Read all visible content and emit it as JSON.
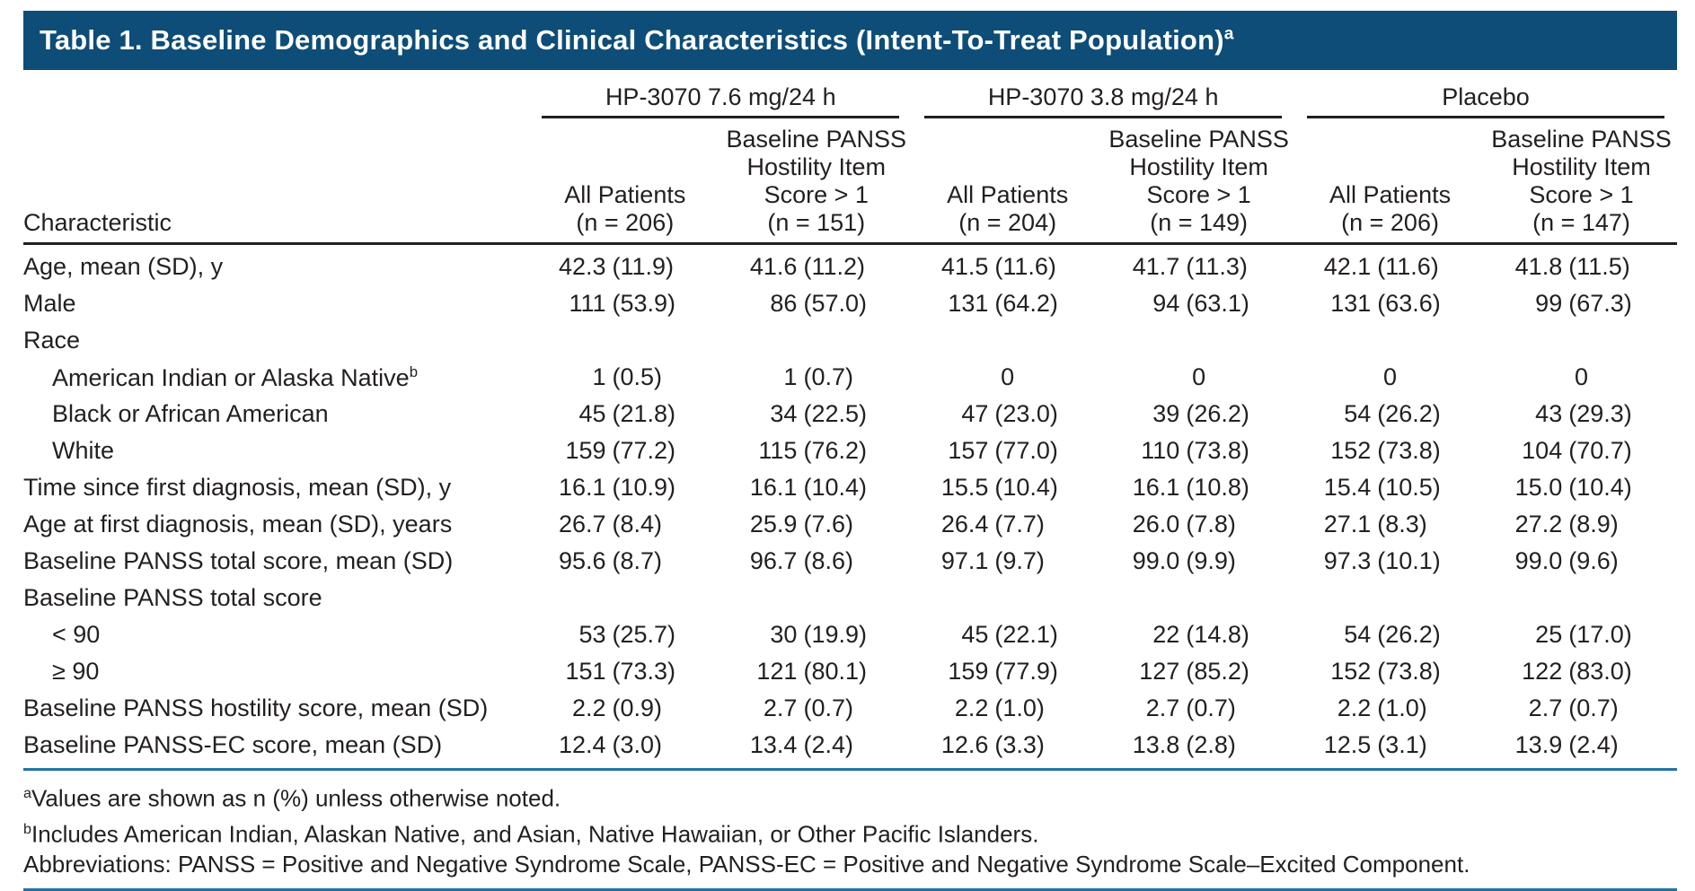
{
  "title": "Table 1. Baseline Demographics and Clinical Characteristics (Intent-To-Treat Population)",
  "title_sup": "a",
  "columns": {
    "characteristic_label": "Characteristic",
    "groups": [
      {
        "label": "HP-3070 7.6 mg/24 h",
        "cols": [
          {
            "lines": [
              "All Patients",
              "(n = 206)"
            ]
          },
          {
            "lines": [
              "Baseline PANSS",
              "Hostility Item",
              "Score > 1",
              "(n = 151)"
            ]
          }
        ]
      },
      {
        "label": "HP-3070 3.8 mg/24 h",
        "cols": [
          {
            "lines": [
              "All Patients",
              "(n = 204)"
            ]
          },
          {
            "lines": [
              "Baseline PANSS",
              "Hostility Item",
              "Score > 1",
              "(n = 149)"
            ]
          }
        ]
      },
      {
        "label": "Placebo",
        "cols": [
          {
            "lines": [
              "All Patients",
              "(n = 206)"
            ]
          },
          {
            "lines": [
              "Baseline PANSS",
              "Hostility Item",
              "Score > 1",
              "(n = 147)"
            ]
          }
        ]
      }
    ]
  },
  "rows": [
    {
      "label": "Age, mean (SD), y",
      "indent": 0,
      "values": [
        "42.3 (11.9)",
        "41.6 (11.2)",
        "41.5 (11.6)",
        "41.7 (11.3)",
        "42.1 (11.6)",
        "41.8 (11.5)"
      ]
    },
    {
      "label": "Male",
      "indent": 0,
      "values": [
        "111 (53.9)",
        "86 (57.0)",
        "131 (64.2)",
        "94 (63.1)",
        "131 (63.6)",
        "99 (67.3)"
      ]
    },
    {
      "label": "Race",
      "indent": 0,
      "values": [
        "",
        "",
        "",
        "",
        "",
        ""
      ]
    },
    {
      "label": "American Indian or Alaska Native",
      "sup": "b",
      "indent": 1,
      "values": [
        "1 (0.5)",
        "1 (0.7)",
        "0",
        "0",
        "0",
        "0"
      ]
    },
    {
      "label": "Black or African American",
      "indent": 1,
      "values": [
        "45 (21.8)",
        "34 (22.5)",
        "47 (23.0)",
        "39 (26.2)",
        "54 (26.2)",
        "43 (29.3)"
      ]
    },
    {
      "label": "White",
      "indent": 1,
      "values": [
        "159 (77.2)",
        "115 (76.2)",
        "157 (77.0)",
        "110 (73.8)",
        "152 (73.8)",
        "104 (70.7)"
      ]
    },
    {
      "label": "Time since first diagnosis, mean (SD), y",
      "indent": 0,
      "values": [
        "16.1 (10.9)",
        "16.1 (10.4)",
        "15.5 (10.4)",
        "16.1 (10.8)",
        "15.4 (10.5)",
        "15.0 (10.4)"
      ]
    },
    {
      "label": "Age at first diagnosis, mean (SD), years",
      "indent": 0,
      "values": [
        "26.7 (8.4)",
        "25.9 (7.6)",
        "26.4 (7.7)",
        "26.0 (7.8)",
        "27.1 (8.3)",
        "27.2 (8.9)"
      ]
    },
    {
      "label": "Baseline PANSS total score, mean (SD)",
      "indent": 0,
      "values": [
        "95.6 (8.7)",
        "96.7 (8.6)",
        "97.1 (9.7)",
        "99.0 (9.9)",
        "97.3 (10.1)",
        "99.0 (9.6)"
      ]
    },
    {
      "label": "Baseline PANSS total score",
      "indent": 0,
      "values": [
        "",
        "",
        "",
        "",
        "",
        ""
      ]
    },
    {
      "label": "< 90",
      "indent": 1,
      "values": [
        "53 (25.7)",
        "30 (19.9)",
        "45 (22.1)",
        "22 (14.8)",
        "54 (26.2)",
        "25 (17.0)"
      ]
    },
    {
      "label": "≥ 90",
      "indent": 1,
      "values": [
        "151 (73.3)",
        "121 (80.1)",
        "159 (77.9)",
        "127 (85.2)",
        "152 (73.8)",
        "122 (83.0)"
      ]
    },
    {
      "label": "Baseline PANSS hostility score, mean (SD)",
      "indent": 0,
      "values": [
        "2.2 (0.9)",
        "2.7 (0.7)",
        "2.2 (1.0)",
        "2.7 (0.7)",
        "2.2 (1.0)",
        "2.7 (0.7)"
      ]
    },
    {
      "label": "Baseline PANSS-EC score, mean (SD)",
      "indent": 0,
      "values": [
        "12.4 (3.0)",
        "13.4 (2.4)",
        "12.6 (3.3)",
        "13.8 (2.8)",
        "12.5 (3.1)",
        "13.9 (2.4)"
      ]
    }
  ],
  "footnotes": [
    {
      "marker": "a",
      "text": "Values are shown as n (%) unless otherwise noted."
    },
    {
      "marker": "b",
      "text": "Includes American Indian, Alaskan Native, and Asian, Native Hawaiian, or Other Pacific Islanders."
    },
    {
      "marker": "",
      "text": "Abbreviations: PANSS = Positive and Negative Syndrome Scale, PANSS-EC = Positive and Negative Syndrome Scale–Excited Component."
    }
  ],
  "colors": {
    "title_bar_bg": "#0d4d78",
    "title_text": "#ffffff",
    "rule_black": "#231f20",
    "rule_blue": "#2273a5",
    "ink": "#231f20"
  }
}
